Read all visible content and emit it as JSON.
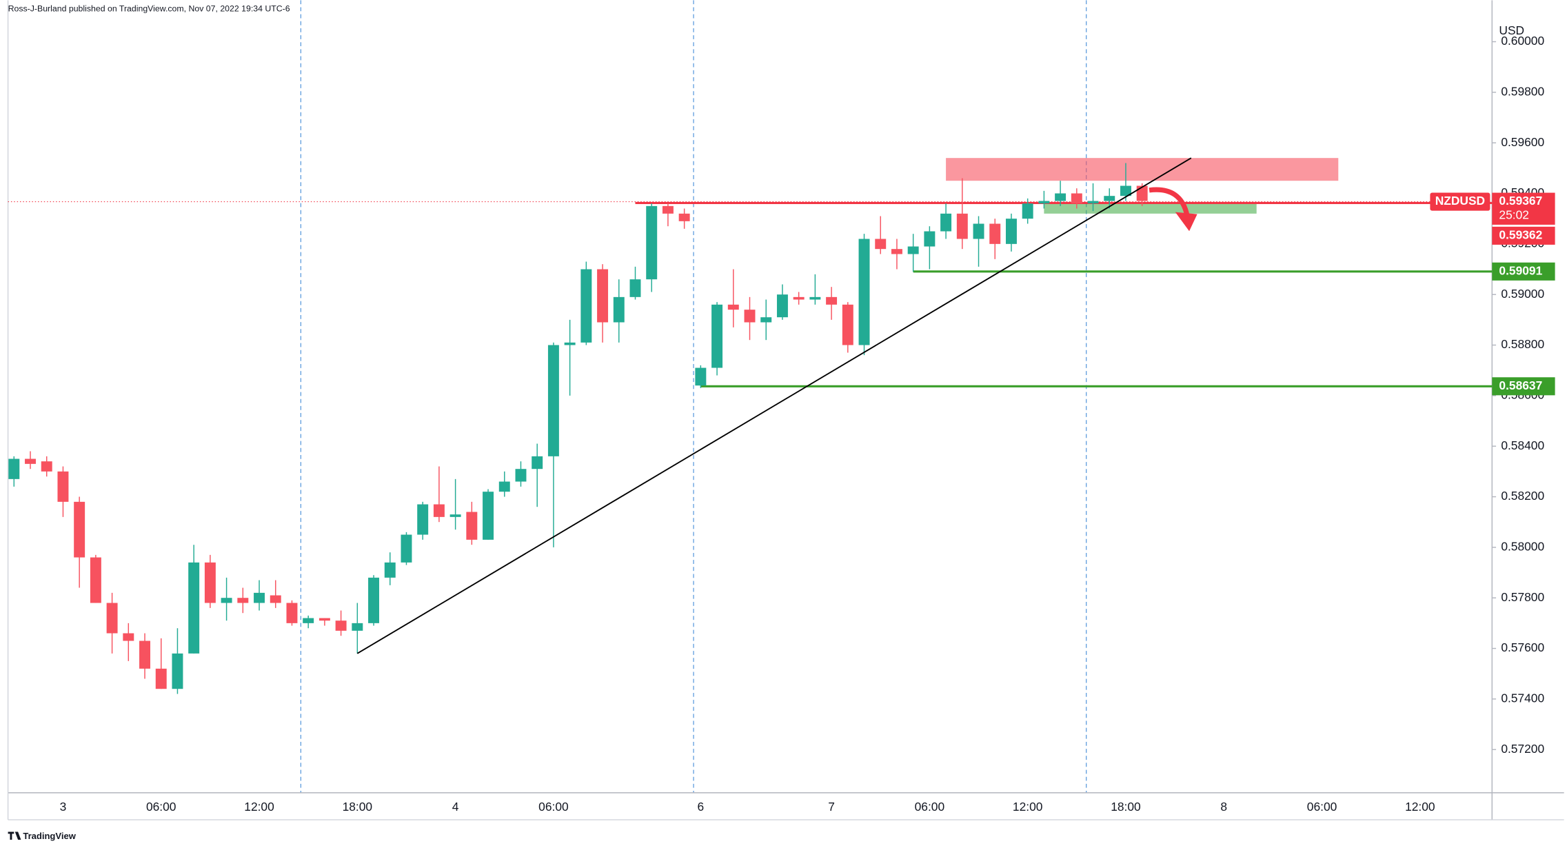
{
  "chart_data": {
    "type": "candlestick",
    "attribution": "Ross-J-Burland published on TradingView.com, Nov 07, 2022 19:34 UTC-6",
    "y_label": "USD",
    "watermark": "TradingView",
    "up_color": "#22ab94",
    "down_color": "#f7525f",
    "categories": [
      null,
      null,
      null,
      "3",
      null,
      null,
      null,
      null,
      null,
      "06:00",
      null,
      null,
      null,
      null,
      null,
      "12:00",
      null,
      null,
      null,
      null,
      null,
      "18:00",
      null,
      null,
      null,
      null,
      null,
      "4",
      null,
      null,
      null,
      null,
      null,
      "06:00",
      null,
      null,
      null,
      null,
      null,
      null,
      null,
      null,
      "6",
      null,
      null,
      null,
      null,
      null,
      null,
      null,
      "7",
      null,
      null,
      null,
      null,
      null,
      "06:00",
      null,
      null,
      null,
      null,
      null,
      "12:00",
      null,
      null,
      null,
      null,
      null,
      "18:00",
      null,
      null,
      null,
      null,
      null,
      "8",
      null,
      null,
      null,
      null,
      null,
      "06:00",
      null,
      null,
      null,
      null,
      null,
      "12:00",
      null
    ],
    "open": [
      0.5827,
      0.5835,
      0.5834,
      0.583,
      0.5818,
      0.5796,
      0.5778,
      0.5766,
      0.5763,
      0.5752,
      0.5744,
      0.5758,
      0.5794,
      0.5778,
      0.578,
      0.5778,
      0.5781,
      0.5778,
      0.577,
      0.5772,
      0.5771,
      0.5767,
      0.577,
      0.5788,
      0.5794,
      0.5805,
      0.5817,
      0.5812,
      0.5814,
      0.5803,
      0.5822,
      0.5826,
      0.5831,
      0.5836,
      0.588,
      0.5881,
      0.591,
      0.5889,
      0.5899,
      0.5906,
      0.5935,
      0.5932,
      0.5864,
      0.5871,
      0.5896,
      0.5894,
      0.5889,
      0.5891,
      0.5899,
      0.5898,
      0.5899,
      0.5896,
      0.588,
      0.5922,
      0.5918,
      0.5916,
      0.5919,
      0.5925,
      0.5932,
      0.5922,
      0.5928,
      0.592,
      0.593,
      0.5936,
      0.5937,
      0.594,
      0.5936,
      0.5937,
      0.5939,
      0.5943,
      null,
      null,
      null,
      null,
      null,
      null,
      null,
      null,
      null,
      null,
      null,
      null,
      null,
      null,
      null,
      null,
      null,
      null
    ],
    "high": [
      0.5836,
      0.5838,
      0.5836,
      0.5832,
      0.582,
      0.5797,
      0.5782,
      0.577,
      0.5766,
      0.5764,
      0.5768,
      0.5801,
      0.5797,
      0.5788,
      0.5784,
      0.5787,
      0.5787,
      0.5779,
      0.5773,
      0.5772,
      0.5775,
      0.5778,
      0.5789,
      0.5798,
      0.5806,
      0.5818,
      0.5832,
      0.5827,
      0.5818,
      0.5823,
      0.583,
      0.5834,
      0.5841,
      0.5881,
      0.589,
      0.5913,
      0.5912,
      0.5906,
      0.5911,
      0.5936,
      0.5936,
      0.5934,
      0.5872,
      0.5897,
      0.591,
      0.5899,
      0.5898,
      0.5904,
      0.5901,
      0.5908,
      0.5903,
      0.5897,
      0.5924,
      0.5931,
      0.5922,
      0.5924,
      0.5927,
      0.5936,
      0.5946,
      0.5931,
      0.593,
      0.5932,
      0.5938,
      0.5941,
      0.5945,
      0.5942,
      0.5944,
      0.5942,
      0.5952,
      0.5944,
      null,
      null,
      null,
      null,
      null,
      null,
      null,
      null,
      null,
      null,
      null,
      null,
      null,
      null,
      null,
      null,
      null,
      null
    ],
    "low": [
      0.5824,
      0.5831,
      0.5828,
      0.5812,
      0.5784,
      0.5778,
      0.5758,
      0.5755,
      0.5748,
      0.5744,
      0.5742,
      0.5758,
      0.5776,
      0.5771,
      0.5774,
      0.5775,
      0.5776,
      0.5769,
      0.5768,
      0.5769,
      0.5765,
      0.5758,
      0.5769,
      0.5785,
      0.5793,
      0.5803,
      0.581,
      0.5807,
      0.5801,
      0.5803,
      0.582,
      0.5824,
      0.5816,
      0.58,
      0.586,
      0.588,
      0.5881,
      0.5881,
      0.5898,
      0.5901,
      0.5927,
      0.5926,
      0.5863,
      0.5868,
      0.5887,
      0.5882,
      0.5882,
      0.589,
      0.5896,
      0.5896,
      0.589,
      0.5877,
      0.5876,
      0.5916,
      0.591,
      0.5909,
      0.591,
      0.5922,
      0.5918,
      0.5911,
      0.5914,
      0.5917,
      0.5928,
      0.5934,
      0.5935,
      0.5934,
      0.5933,
      0.5934,
      0.5937,
      0.5935,
      null,
      null,
      null,
      null,
      null,
      null,
      null,
      null,
      null,
      null,
      null,
      null,
      null,
      null,
      null,
      null,
      null,
      null
    ],
    "close": [
      0.5835,
      0.5833,
      0.583,
      0.5818,
      0.5796,
      0.5778,
      0.5766,
      0.5763,
      0.5752,
      0.5744,
      0.5758,
      0.5794,
      0.5778,
      0.578,
      0.5778,
      0.5782,
      0.5778,
      0.577,
      0.5772,
      0.5771,
      0.5767,
      0.577,
      0.5788,
      0.5794,
      0.5805,
      0.5817,
      0.5812,
      0.5813,
      0.5803,
      0.5822,
      0.5826,
      0.5831,
      0.5836,
      0.588,
      0.5881,
      0.591,
      0.5889,
      0.5899,
      0.5906,
      0.5935,
      0.5932,
      0.5929,
      0.5871,
      0.5896,
      0.5894,
      0.5889,
      0.5891,
      0.59,
      0.5898,
      0.5899,
      0.5896,
      0.588,
      0.5922,
      0.5918,
      0.5916,
      0.5919,
      0.5925,
      0.5932,
      0.5922,
      0.5928,
      0.592,
      0.593,
      0.5936,
      0.5937,
      0.594,
      0.5936,
      0.5937,
      0.5939,
      0.5943,
      0.5937,
      null,
      null,
      null,
      null,
      null,
      null,
      null,
      null,
      null,
      null,
      null,
      null,
      null,
      null,
      null,
      null,
      null,
      null
    ],
    "ylim": [
      0.57029,
      0.60164
    ],
    "yticks": [
      {
        "value": 0.572,
        "label": "0.57200"
      },
      {
        "value": 0.574,
        "label": "0.57400"
      },
      {
        "value": 0.576,
        "label": "0.57600"
      },
      {
        "value": 0.578,
        "label": "0.57800"
      },
      {
        "value": 0.58,
        "label": "0.58000"
      },
      {
        "value": 0.582,
        "label": "0.58200"
      },
      {
        "value": 0.584,
        "label": "0.58400"
      },
      {
        "value": 0.586,
        "label": "0.58600"
      },
      {
        "value": 0.588,
        "label": "0.58800"
      },
      {
        "value": 0.59,
        "label": "0.59000"
      },
      {
        "value": 0.592,
        "label": "0.59200"
      },
      {
        "value": 0.594,
        "label": "0.59400"
      },
      {
        "value": 0.596,
        "label": "0.59600"
      },
      {
        "value": 0.598,
        "label": "0.59800"
      },
      {
        "value": 0.6,
        "label": "0.60000"
      }
    ],
    "zones": [
      {
        "x": [
          57,
          81
        ],
        "y": [
          0.5945,
          0.5954
        ],
        "color": "#f7525f"
      },
      {
        "x": [
          63,
          76
        ],
        "y": [
          0.5932,
          0.5936
        ],
        "color": "#4caf50"
      }
    ],
    "trendline": {
      "from": [
        21,
        0.5758
      ],
      "to": [
        72,
        0.5954
      ],
      "color": "#000000"
    },
    "last_price": {
      "symbol": "NZDUSD",
      "value": 0.59367,
      "label": "0.59367",
      "countdown": "25:02",
      "color": "#f23645"
    },
    "levels": [
      {
        "value": 0.59362,
        "label": "0.59362",
        "from": 38,
        "color": "#f23645"
      },
      {
        "value": 0.59091,
        "label": "0.59091",
        "from": 55,
        "color": "#3a9e2a"
      },
      {
        "value": 0.58637,
        "label": "0.58637",
        "from": 42,
        "color": "#3a9e2a"
      }
    ]
  }
}
